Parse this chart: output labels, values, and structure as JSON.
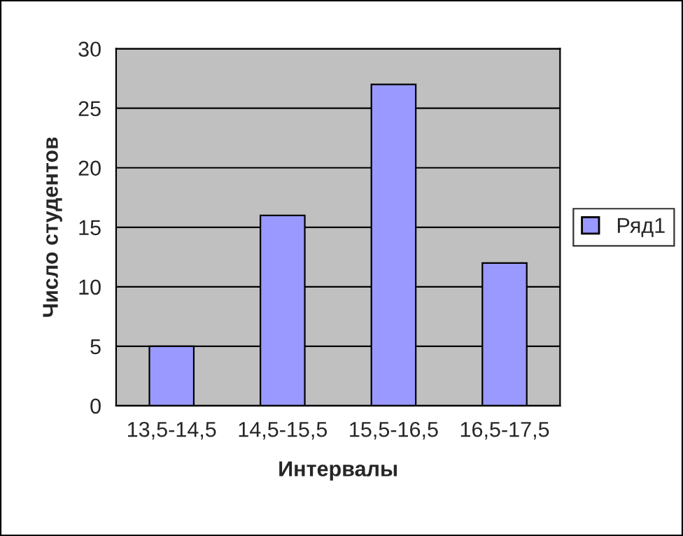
{
  "chart_data": {
    "type": "bar",
    "xlabel": "Интервалы",
    "ylabel": "Число студентов",
    "categories": [
      "13,5-14,5",
      "14,5-15,5",
      "15,5-16,5",
      "16,5-17,5"
    ],
    "series": [
      {
        "name": "Ряд1",
        "color": "#9999ff",
        "values": [
          5,
          16,
          27,
          12
        ]
      }
    ],
    "ylim": [
      0,
      30
    ],
    "yticks": [
      0,
      5,
      10,
      15,
      20,
      25,
      30
    ],
    "grid": "y",
    "legend": "right"
  }
}
